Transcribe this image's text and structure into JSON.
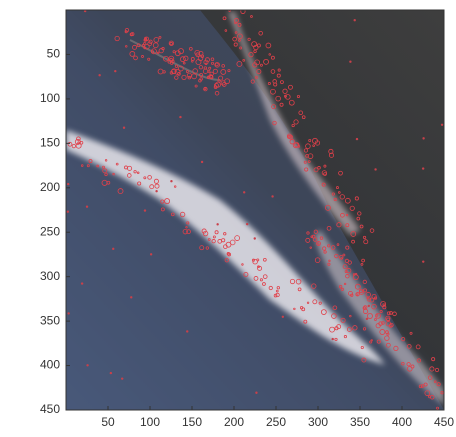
{
  "chart_data": {
    "type": "image",
    "xlim": [
      0,
      450
    ],
    "ylim": [
      450,
      0
    ],
    "xticks": [
      50,
      100,
      150,
      200,
      250,
      300,
      350,
      400,
      450
    ],
    "yticks": [
      50,
      100,
      150,
      200,
      250,
      300,
      350,
      400,
      450
    ]
  }
}
